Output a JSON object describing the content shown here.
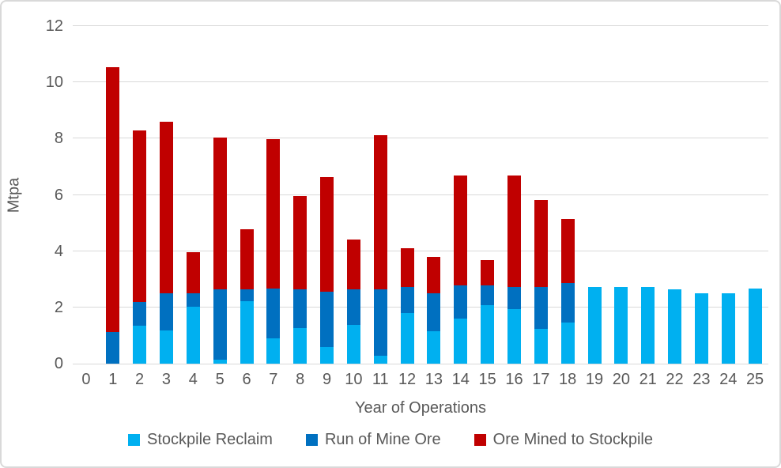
{
  "chart_data": {
    "type": "bar",
    "stacked": true,
    "title": "",
    "xlabel": "Year of Operations",
    "ylabel": "Mtpa",
    "ylim": [
      0,
      12
    ],
    "y_ticks": [
      0,
      2,
      4,
      6,
      8,
      10,
      12
    ],
    "grid": true,
    "legend_position": "bottom",
    "categories": [
      0,
      1,
      2,
      3,
      4,
      5,
      6,
      7,
      8,
      9,
      10,
      11,
      12,
      13,
      14,
      15,
      16,
      17,
      18,
      19,
      20,
      21,
      22,
      23,
      24,
      25
    ],
    "series": [
      {
        "name": "Stockpile Reclaim",
        "color": "#00B0F0",
        "values": [
          0,
          0,
          1.34,
          1.19,
          2.01,
          0.13,
          2.23,
          0.89,
          1.26,
          0.6,
          1.38,
          0.29,
          1.81,
          1.14,
          1.61,
          2.07,
          1.94,
          1.24,
          1.46,
          2.72,
          2.72,
          2.72,
          2.65,
          2.51,
          2.51,
          2.66
        ]
      },
      {
        "name": "Run of Mine Ore",
        "color": "#0070C0",
        "values": [
          0,
          1.13,
          0.86,
          1.32,
          0.5,
          2.5,
          0.4,
          1.77,
          1.38,
          1.95,
          1.25,
          2.36,
          0.91,
          1.37,
          1.16,
          0.72,
          0.79,
          1.49,
          1.4,
          0,
          0,
          0,
          0,
          0,
          0,
          0
        ]
      },
      {
        "name": "Ore Mined to Stockpile",
        "color": "#C00000",
        "values": [
          0,
          9.41,
          6.1,
          6.08,
          1.46,
          5.4,
          2.15,
          5.33,
          3.32,
          4.09,
          1.78,
          5.46,
          1.37,
          1.28,
          3.92,
          0.9,
          3.96,
          3.08,
          2.29,
          0,
          0,
          0,
          0,
          0,
          0,
          0
        ]
      }
    ]
  },
  "style": {
    "axis_text_color": "#595959",
    "gridline_color": "#D9D9D9",
    "border_color": "#D9D9D9",
    "background": "#FFFFFF"
  }
}
